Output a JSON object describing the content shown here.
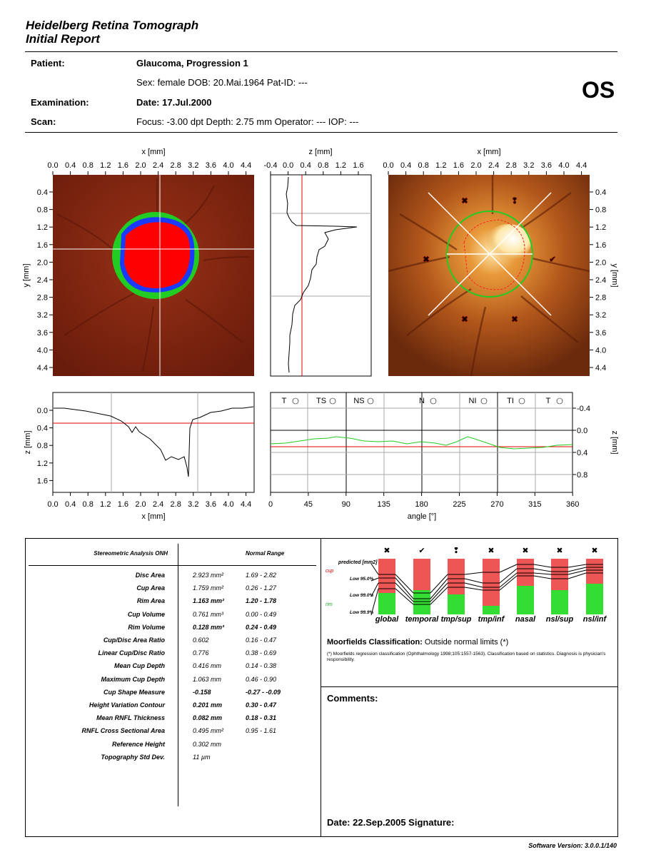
{
  "report": {
    "title_line1": "Heidelberg Retina Tomograph",
    "title_line2": "Initial Report",
    "eye": "OS",
    "software_version": "Software Version: 3.0.0.1/140"
  },
  "header": {
    "patient_label": "Patient:",
    "patient_value": "Glaucoma, Progression 1",
    "demographics": "Sex: female   DOB: 20.Mai.1964   Pat-ID: ---",
    "examination_label": "Examination:",
    "examination_value": "Date: 17.Jul.2000",
    "scan_label": "Scan:",
    "scan_value": "Focus: -3.00 dpt   Depth: 2.75 mm   Operator: ---   IOP: ---"
  },
  "axes": {
    "x_mm_label": "x [mm]",
    "y_mm_label": "y [mm]",
    "z_mm_label": "z [mm]",
    "angle_label": "angle [°]",
    "mm_ticks": [
      "0.0",
      "0.4",
      "0.8",
      "1.2",
      "1.6",
      "2.0",
      "2.4",
      "2.8",
      "3.2",
      "3.6",
      "4.0",
      "4.4"
    ],
    "y_ticks": [
      "0.4",
      "0.8",
      "1.2",
      "1.6",
      "2.0",
      "2.4",
      "2.8",
      "3.2",
      "3.6",
      "4.0",
      "4.4"
    ],
    "z_top_ticks": [
      "-0.4",
      "0.0",
      "0.4",
      "0.8",
      "1.2",
      "1.6"
    ],
    "z_left_ticks": [
      "0.0",
      "0.4",
      "0.8",
      "1.2",
      "1.6"
    ],
    "z_right_ticks": [
      "-0.4",
      "0.0",
      "0.4",
      "0.8"
    ],
    "angle_ticks": [
      "0",
      "45",
      "90",
      "135",
      "180",
      "225",
      "270",
      "315",
      "360"
    ],
    "sector_labels": [
      "T",
      "TS",
      "NS",
      "N",
      "NI",
      "TI",
      "T"
    ]
  },
  "stereometric": {
    "heading": "Stereometric Analysis ONH",
    "normal_heading": "Normal Range",
    "rows": [
      {
        "name": "Disc Area",
        "value": "2.923  mm²",
        "range": "1.69 - 2.82"
      },
      {
        "name": "Cup Area",
        "value": "1.759  mm²",
        "range": "0.26 - 1.27"
      },
      {
        "name": "Rim Area",
        "value": "1.163  mm²",
        "range": "1.20 - 1.78"
      },
      {
        "name": "Cup Volume",
        "value": "0.761  mm³",
        "range": "0.00 - 0.49"
      },
      {
        "name": "Rim Volume",
        "value": "0.128  mm³",
        "range": "0.24 - 0.49"
      },
      {
        "name": "Cup/Disc Area Ratio",
        "value": "0.602",
        "range": "0.16 - 0.47"
      },
      {
        "name": "Linear Cup/Disc Ratio",
        "value": "0.776",
        "range": "0.38 - 0.69"
      },
      {
        "name": "Mean Cup Depth",
        "value": "0.416  mm",
        "range": "0.14 - 0.38"
      },
      {
        "name": "Maximum Cup Depth",
        "value": "1.063  mm",
        "range": "0.46 - 0.90"
      },
      {
        "name": "Cup Shape Measure",
        "value": "-0.158",
        "range": "-0.27 - -0.09"
      },
      {
        "name": "Height Variation Contour",
        "value": "0.201  mm",
        "range": "0.30 - 0.47"
      },
      {
        "name": "Mean RNFL Thickness",
        "value": "0.082 mm",
        "range": "0.18 - 0.31"
      },
      {
        "name": "RNFL Cross Sectional Area",
        "value": "0.495 mm²",
        "range": "0.95 - 1.61"
      },
      {
        "name": "Reference Height",
        "value": "0.302  mm",
        "range": ""
      },
      {
        "name": "Topography Std Dev.",
        "value": "11  µm",
        "range": ""
      }
    ]
  },
  "moorfields": {
    "legend_predicted": "predicted [mm2]",
    "legend_cup": "cup",
    "legend_rim": "rim",
    "legend_low95": "Low 95.0%",
    "legend_low99": "Low 99.0%",
    "legend_low999": "Low 99.9%",
    "sectors": [
      {
        "name": "global",
        "status": "✖"
      },
      {
        "name": "temporal",
        "status": "✔"
      },
      {
        "name": "tmp/sup",
        "status": "❢"
      },
      {
        "name": "tmp/inf",
        "status": "✖"
      },
      {
        "name": "nasal",
        "status": "✖"
      },
      {
        "name": "nsl/sup",
        "status": "✖"
      },
      {
        "name": "nsl/inf",
        "status": "✖"
      }
    ],
    "classification_label": "Moorfields Classification:",
    "classification_value": "Outside normal limits (*)",
    "footnote": "(*) Moorfields regression classification (Ophthalmology 1998;105:1557-1563). Classification based on statistics. Diagnosis is physician's responsibility."
  },
  "comments": {
    "label": "Comments:",
    "date_signature": "Date: 22.Sep.2005  Signature:"
  },
  "colors": {
    "cup": "#ff0000",
    "rim": "#22cc22",
    "rim_blue": "#1a3aff",
    "fail": "#e8201a",
    "pass": "#2ec22e",
    "borderline": "#f0e000"
  }
}
